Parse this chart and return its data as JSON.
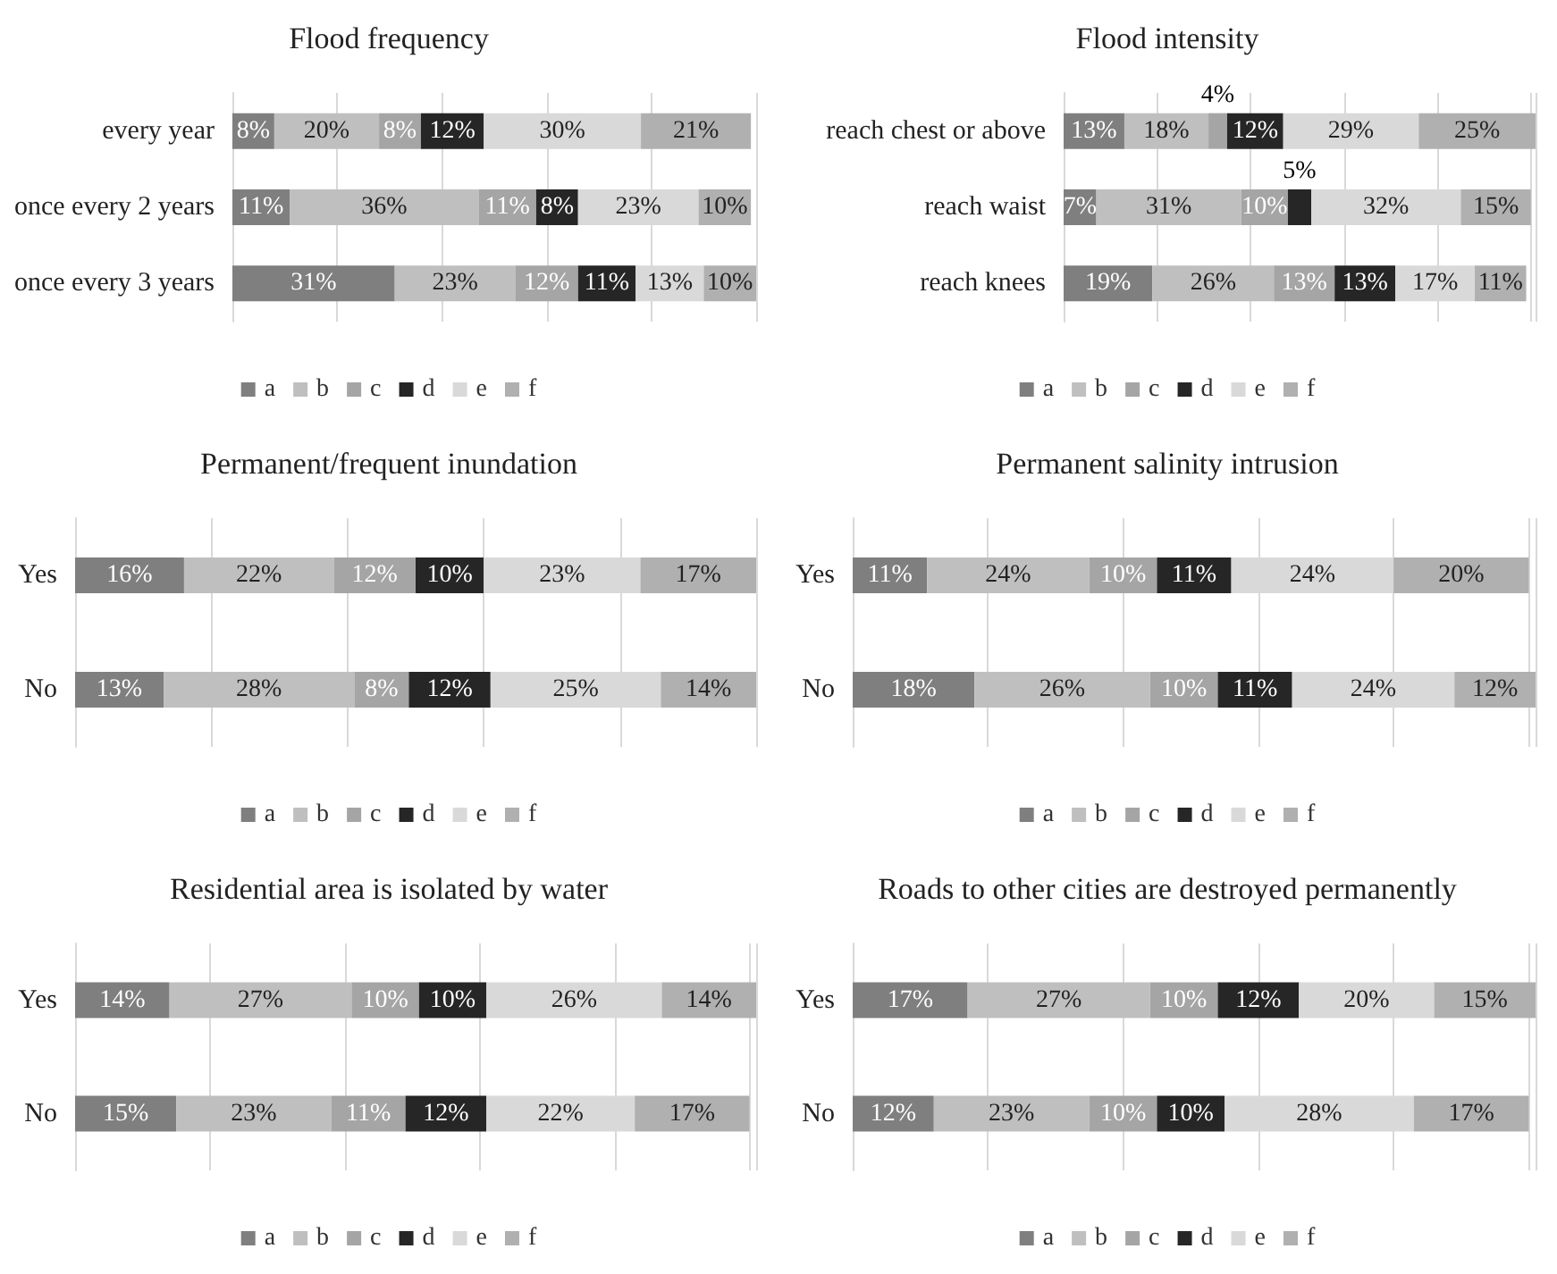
{
  "chart_data": [
    {
      "type": "bar",
      "orientation": "horizontal",
      "stacked": true,
      "title": "Flood frequency",
      "categories": [
        "every year",
        "once every 2 years",
        "once every 3 years"
      ],
      "grid": "x",
      "legend": "bottom",
      "series": [
        {
          "name": "a",
          "color": "#7f7f7f",
          "values": [
            8,
            11,
            31
          ],
          "value_labels": [
            "8%",
            "11%",
            "31%"
          ]
        },
        {
          "name": "b",
          "color": "#bfbfbf",
          "values": [
            20,
            36,
            23
          ],
          "value_labels": [
            "20%",
            "36%",
            "23%"
          ]
        },
        {
          "name": "c",
          "color": "#a5a5a5",
          "values": [
            8,
            11,
            12
          ],
          "value_labels": [
            "8%",
            "11%",
            "12%"
          ]
        },
        {
          "name": "d",
          "color": "#262626",
          "values": [
            12,
            8,
            11
          ],
          "value_labels": [
            "12%",
            "8%",
            "11%"
          ]
        },
        {
          "name": "e",
          "color": "#d9d9d9",
          "values": [
            30,
            23,
            13
          ],
          "value_labels": [
            "30%",
            "23%",
            "13%"
          ]
        },
        {
          "name": "f",
          "color": "#b0b0b0",
          "values": [
            21,
            10,
            10
          ],
          "value_labels": [
            "21%",
            "10%",
            "10%"
          ]
        }
      ]
    },
    {
      "type": "bar",
      "orientation": "horizontal",
      "stacked": true,
      "title": "Flood intensity",
      "categories": [
        "reach chest or above",
        "reach waist",
        "reach knees"
      ],
      "grid": "x",
      "legend": "bottom",
      "series": [
        {
          "name": "a",
          "color": "#7f7f7f",
          "values": [
            13,
            7,
            19
          ],
          "value_labels": [
            "13%",
            "7%",
            "19%"
          ]
        },
        {
          "name": "b",
          "color": "#bfbfbf",
          "values": [
            18,
            31,
            26
          ],
          "value_labels": [
            "18%",
            "31%",
            "26%"
          ]
        },
        {
          "name": "c",
          "color": "#a5a5a5",
          "values": [
            4,
            10,
            13
          ],
          "value_labels": [
            "4%",
            "10%",
            "13%"
          ]
        },
        {
          "name": "d",
          "color": "#262626",
          "values": [
            12,
            5,
            13
          ],
          "value_labels": [
            "12%",
            "5%",
            "13%"
          ]
        },
        {
          "name": "e",
          "color": "#d9d9d9",
          "values": [
            29,
            32,
            17
          ],
          "value_labels": [
            "29%",
            "32%",
            "17%"
          ]
        },
        {
          "name": "f",
          "color": "#b0b0b0",
          "values": [
            25,
            15,
            11
          ],
          "value_labels": [
            "25%",
            "15%",
            "11%"
          ]
        }
      ]
    },
    {
      "type": "bar",
      "orientation": "horizontal",
      "stacked": true,
      "title": "Permanent/frequent inundation",
      "categories": [
        "Yes",
        "No"
      ],
      "grid": "x",
      "legend": "bottom",
      "series": [
        {
          "name": "a",
          "color": "#7f7f7f",
          "values": [
            16,
            13
          ],
          "value_labels": [
            "16%",
            "13%"
          ]
        },
        {
          "name": "b",
          "color": "#bfbfbf",
          "values": [
            22,
            28
          ],
          "value_labels": [
            "22%",
            "28%"
          ]
        },
        {
          "name": "c",
          "color": "#a5a5a5",
          "values": [
            12,
            8
          ],
          "value_labels": [
            "12%",
            "8%"
          ]
        },
        {
          "name": "d",
          "color": "#262626",
          "values": [
            10,
            12
          ],
          "value_labels": [
            "10%",
            "12%"
          ]
        },
        {
          "name": "e",
          "color": "#d9d9d9",
          "values": [
            23,
            25
          ],
          "value_labels": [
            "23%",
            "25%"
          ]
        },
        {
          "name": "f",
          "color": "#b0b0b0",
          "values": [
            17,
            14
          ],
          "value_labels": [
            "17%",
            "14%"
          ]
        }
      ]
    },
    {
      "type": "bar",
      "orientation": "horizontal",
      "stacked": true,
      "title": "Permanent salinity intrusion",
      "categories": [
        "Yes",
        "No"
      ],
      "grid": "x",
      "legend": "bottom",
      "series": [
        {
          "name": "a",
          "color": "#7f7f7f",
          "values": [
            11,
            18
          ],
          "value_labels": [
            "11%",
            "18%"
          ]
        },
        {
          "name": "b",
          "color": "#bfbfbf",
          "values": [
            24,
            26
          ],
          "value_labels": [
            "24%",
            "26%"
          ]
        },
        {
          "name": "c",
          "color": "#a5a5a5",
          "values": [
            10,
            10
          ],
          "value_labels": [
            "10%",
            "10%"
          ]
        },
        {
          "name": "d",
          "color": "#262626",
          "values": [
            11,
            11
          ],
          "value_labels": [
            "11%",
            "11%"
          ]
        },
        {
          "name": "e",
          "color": "#d9d9d9",
          "values": [
            24,
            24
          ],
          "value_labels": [
            "24%",
            "24%"
          ]
        },
        {
          "name": "f",
          "color": "#b0b0b0",
          "values": [
            20,
            12
          ],
          "value_labels": [
            "20%",
            "12%"
          ]
        }
      ]
    },
    {
      "type": "bar",
      "orientation": "horizontal",
      "stacked": true,
      "title": "Residential area is isolated by water",
      "categories": [
        "Yes",
        "No"
      ],
      "grid": "x",
      "legend": "bottom",
      "series": [
        {
          "name": "a",
          "color": "#7f7f7f",
          "values": [
            14,
            15
          ],
          "value_labels": [
            "14%",
            "15%"
          ]
        },
        {
          "name": "b",
          "color": "#bfbfbf",
          "values": [
            27,
            23
          ],
          "value_labels": [
            "27%",
            "23%"
          ]
        },
        {
          "name": "c",
          "color": "#a5a5a5",
          "values": [
            10,
            11
          ],
          "value_labels": [
            "10%",
            "11%"
          ]
        },
        {
          "name": "d",
          "color": "#262626",
          "values": [
            10,
            12
          ],
          "value_labels": [
            "10%",
            "12%"
          ]
        },
        {
          "name": "e",
          "color": "#d9d9d9",
          "values": [
            26,
            22
          ],
          "value_labels": [
            "26%",
            "22%"
          ]
        },
        {
          "name": "f",
          "color": "#b0b0b0",
          "values": [
            14,
            17
          ],
          "value_labels": [
            "14%",
            "17%"
          ]
        }
      ]
    },
    {
      "type": "bar",
      "orientation": "horizontal",
      "stacked": true,
      "title": "Roads to other cities are destroyed permanently",
      "categories": [
        "Yes",
        "No"
      ],
      "grid": "x",
      "legend": "bottom",
      "series": [
        {
          "name": "a",
          "color": "#7f7f7f",
          "values": [
            17,
            12
          ],
          "value_labels": [
            "17%",
            "12%"
          ]
        },
        {
          "name": "b",
          "color": "#bfbfbf",
          "values": [
            27,
            23
          ],
          "value_labels": [
            "27%",
            "23%"
          ]
        },
        {
          "name": "c",
          "color": "#a5a5a5",
          "values": [
            10,
            10
          ],
          "value_labels": [
            "10%",
            "10%"
          ]
        },
        {
          "name": "d",
          "color": "#262626",
          "values": [
            12,
            10
          ],
          "value_labels": [
            "12%",
            "10%"
          ]
        },
        {
          "name": "e",
          "color": "#d9d9d9",
          "values": [
            20,
            28
          ],
          "value_labels": [
            "20%",
            "28%"
          ]
        },
        {
          "name": "f",
          "color": "#b0b0b0",
          "values": [
            15,
            17
          ],
          "value_labels": [
            "15%",
            "17%"
          ]
        }
      ]
    }
  ]
}
